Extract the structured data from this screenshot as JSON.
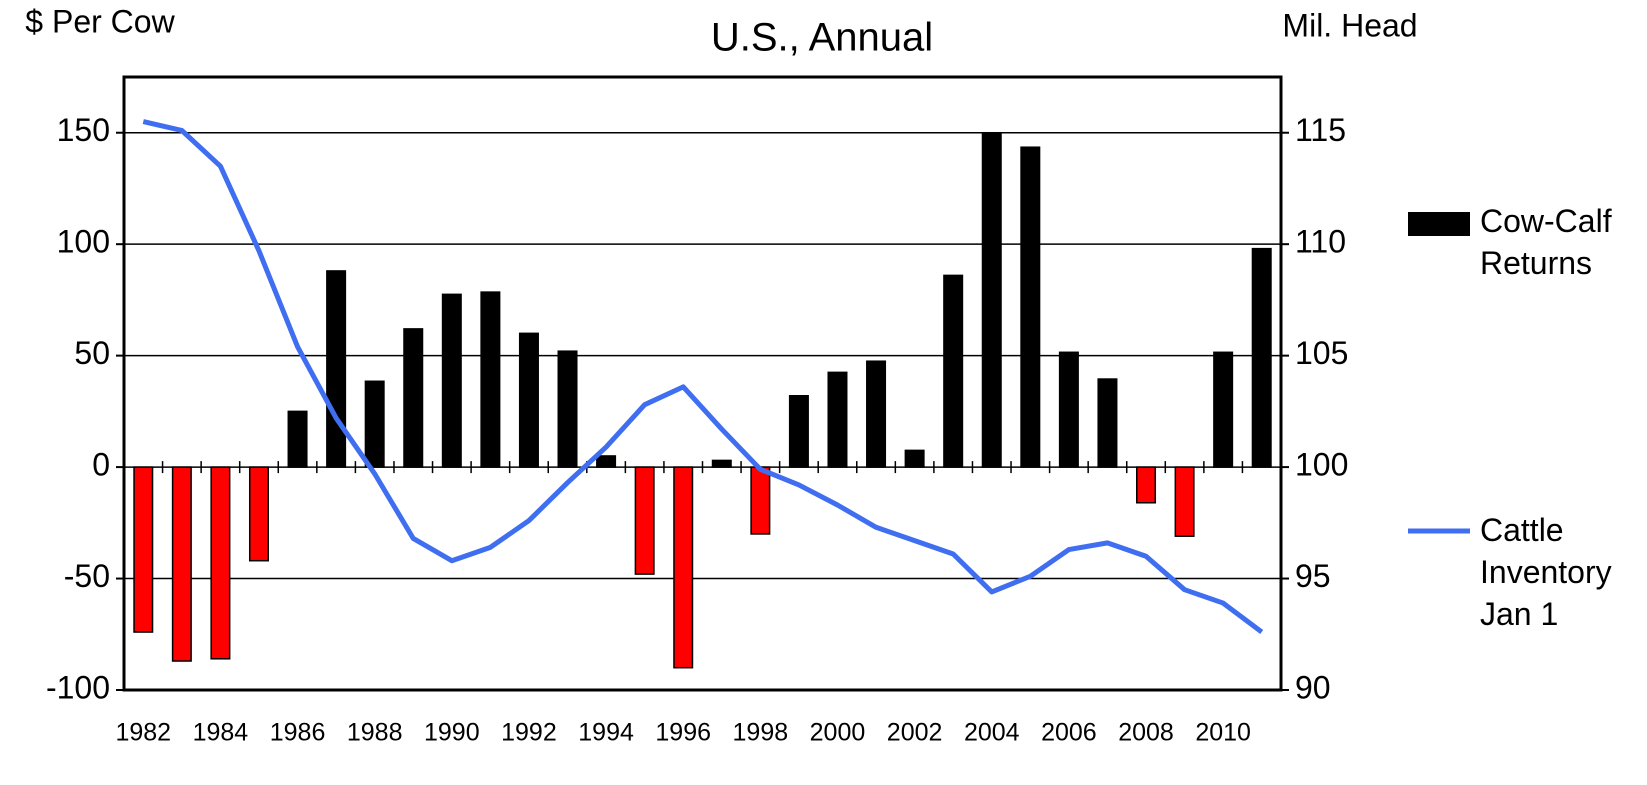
{
  "chart_data": {
    "type": "bar_line",
    "title": "U.S., Annual",
    "y_label": "$ Per Cow",
    "y2_label": "Mil. Head",
    "categories": [
      "1982",
      null,
      "1984",
      null,
      "1986",
      null,
      "1988",
      null,
      "1990",
      null,
      "1992",
      null,
      "1994",
      null,
      "1996",
      null,
      "1998",
      null,
      "2000",
      null,
      "2002",
      null,
      "2004",
      null,
      "2006",
      null,
      "2008",
      null,
      "2010",
      null
    ],
    "series": [
      {
        "name": "Cow-Calf Returns",
        "type": "bar",
        "color": "#000000",
        "negative_color": "#ff0000",
        "values": [
          -74,
          -87,
          -86,
          -42,
          25,
          88,
          38.5,
          62,
          77.5,
          78.5,
          60,
          52,
          5,
          -48,
          -90,
          3,
          -30,
          32,
          42.5,
          47.5,
          7.5,
          86,
          150,
          143.5,
          51.5,
          39.5,
          -16,
          -31,
          51.5,
          98
        ]
      },
      {
        "name": "Cattle Inventory Jan 1",
        "type": "line",
        "axis": "y2",
        "color": "#3f6ef0",
        "values": [
          115.5,
          115.1,
          113.5,
          109.7,
          105.4,
          102.2,
          99.7,
          96.8,
          95.8,
          96.4,
          97.6,
          99.3,
          100.9,
          102.8,
          103.6,
          101.7,
          99.9,
          99.2,
          98.3,
          97.3,
          96.7,
          96.1,
          94.4,
          95.1,
          96.3,
          96.6,
          96.0,
          94.5,
          93.9,
          92.6
        ]
      }
    ],
    "ylim": [
      -100,
      175
    ],
    "yticks": [
      -100,
      -50,
      0,
      50,
      100,
      150
    ],
    "y2lim": [
      90,
      117.5
    ],
    "y2ticks": [
      90,
      95,
      100,
      105,
      110,
      115
    ],
    "grid": true,
    "legend": "right"
  }
}
